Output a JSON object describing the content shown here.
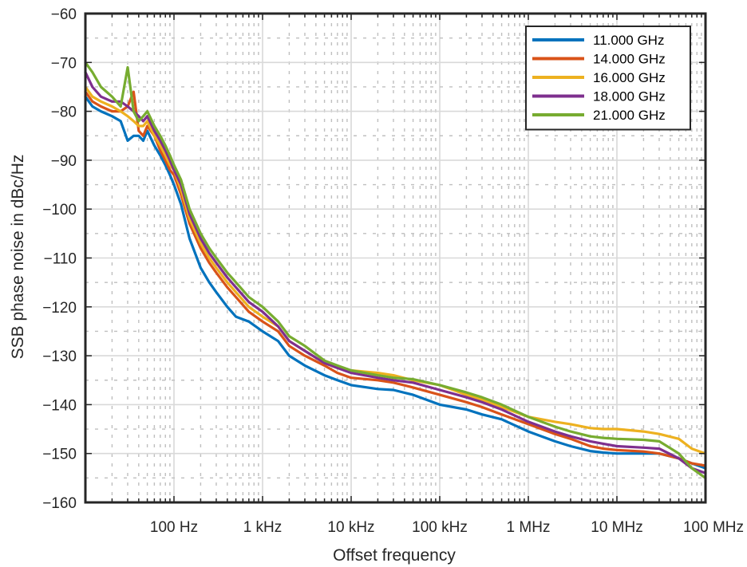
{
  "chart_data": {
    "type": "line",
    "xscale": "log",
    "xlabel": "Offset frequency",
    "ylabel": "SSB phase noise in dBc/Hz",
    "xlim": [
      10,
      100000000
    ],
    "ylim": [
      -160,
      -60
    ],
    "grid": true,
    "legend_position": "top-right",
    "x_ticks": [
      {
        "value": 100,
        "label": "100 Hz"
      },
      {
        "value": 1000,
        "label": "1 kHz"
      },
      {
        "value": 10000,
        "label": "10 kHz"
      },
      {
        "value": 100000,
        "label": "100 kHz"
      },
      {
        "value": 1000000,
        "label": "1 MHz"
      },
      {
        "value": 10000000,
        "label": "10 MHz"
      },
      {
        "value": 100000000,
        "label": "100 MHz"
      }
    ],
    "y_ticks": [
      {
        "value": -60,
        "label": "−60"
      },
      {
        "value": -70,
        "label": "−70"
      },
      {
        "value": -80,
        "label": "−80"
      },
      {
        "value": -90,
        "label": "−90"
      },
      {
        "value": -100,
        "label": "−100"
      },
      {
        "value": -110,
        "label": "−110"
      },
      {
        "value": -120,
        "label": "−120"
      },
      {
        "value": -130,
        "label": "−130"
      },
      {
        "value": -140,
        "label": "−140"
      },
      {
        "value": -150,
        "label": "−150"
      },
      {
        "value": -160,
        "label": "−160"
      }
    ],
    "series": [
      {
        "name": "11.000 GHz",
        "color": "#0072BD",
        "x": [
          10,
          12,
          15,
          20,
          25,
          30,
          35,
          40,
          45,
          50,
          60,
          70,
          80,
          90,
          100,
          120,
          150,
          200,
          250,
          300,
          400,
          500,
          700,
          1000,
          1500,
          2000,
          3000,
          5000,
          7000,
          10000,
          20000,
          30000,
          50000,
          100000,
          200000,
          300000,
          500000,
          1000000,
          2000000,
          3000000,
          5000000,
          7000000,
          10000000,
          20000000,
          30000000,
          50000000,
          70000000,
          100000000
        ],
        "y": [
          -77,
          -79,
          -80,
          -81,
          -82,
          -86,
          -85,
          -85,
          -86,
          -84,
          -87,
          -89,
          -91,
          -93,
          -95,
          -99,
          -106,
          -112,
          -115,
          -117,
          -120,
          -122,
          -123,
          -125,
          -127,
          -130,
          -132,
          -134,
          -135,
          -136,
          -136.8,
          -137,
          -138,
          -140,
          -141,
          -142,
          -143,
          -145.5,
          -147.5,
          -148.5,
          -149.5,
          -149.8,
          -150,
          -150,
          -150,
          -151,
          -152,
          -153
        ]
      },
      {
        "name": "14.000 GHz",
        "color": "#D95319",
        "x": [
          10,
          12,
          15,
          20,
          25,
          30,
          35,
          40,
          45,
          50,
          60,
          70,
          80,
          90,
          100,
          120,
          150,
          200,
          250,
          300,
          400,
          500,
          700,
          1000,
          1500,
          2000,
          3000,
          5000,
          7000,
          10000,
          20000,
          30000,
          50000,
          100000,
          200000,
          300000,
          500000,
          1000000,
          2000000,
          3000000,
          5000000,
          7000000,
          10000000,
          20000000,
          30000000,
          50000000,
          70000000,
          100000000
        ],
        "y": [
          -76,
          -78,
          -79,
          -80,
          -80,
          -79,
          -76,
          -84,
          -85,
          -83,
          -85,
          -88,
          -90,
          -92,
          -93,
          -97,
          -103,
          -108,
          -111,
          -113,
          -116,
          -118,
          -121,
          -123,
          -125,
          -128,
          -130,
          -132,
          -133.5,
          -134.5,
          -135,
          -135.5,
          -136.5,
          -138,
          -139.5,
          -140.5,
          -142,
          -144,
          -146,
          -147,
          -148.5,
          -149,
          -149.3,
          -149.6,
          -150,
          -151,
          -152,
          -152.5
        ]
      },
      {
        "name": "16.000 GHz",
        "color": "#EDB120",
        "x": [
          10,
          12,
          15,
          20,
          25,
          30,
          35,
          40,
          45,
          50,
          60,
          70,
          80,
          90,
          100,
          120,
          150,
          200,
          250,
          300,
          400,
          500,
          700,
          1000,
          1500,
          2000,
          3000,
          5000,
          7000,
          10000,
          20000,
          30000,
          50000,
          100000,
          200000,
          300000,
          500000,
          1000000,
          2000000,
          3000000,
          5000000,
          7000000,
          10000000,
          20000000,
          30000000,
          50000000,
          70000000,
          100000000
        ],
        "y": [
          -75,
          -77,
          -78,
          -79,
          -80,
          -81,
          -82,
          -83,
          -83,
          -82,
          -85,
          -87,
          -89,
          -91,
          -92,
          -96,
          -102,
          -107,
          -110,
          -112,
          -115,
          -117,
          -120,
          -122,
          -124,
          -127,
          -129,
          -131.5,
          -132.5,
          -133,
          -133.5,
          -134,
          -135,
          -136,
          -138,
          -139,
          -140.5,
          -142.5,
          -143.5,
          -144,
          -144.8,
          -145,
          -145,
          -145.5,
          -146,
          -147,
          -149,
          -150
        ]
      },
      {
        "name": "18.000 GHz",
        "color": "#7E2F8E",
        "x": [
          10,
          12,
          15,
          20,
          25,
          30,
          35,
          40,
          45,
          50,
          60,
          70,
          80,
          90,
          100,
          120,
          150,
          200,
          250,
          300,
          400,
          500,
          700,
          1000,
          1500,
          2000,
          3000,
          5000,
          7000,
          10000,
          20000,
          30000,
          50000,
          100000,
          200000,
          300000,
          500000,
          1000000,
          2000000,
          3000000,
          5000000,
          7000000,
          10000000,
          20000000,
          30000000,
          50000000,
          70000000,
          100000000
        ],
        "y": [
          -72,
          -75,
          -77,
          -78,
          -78,
          -79,
          -80,
          -81,
          -82,
          -81,
          -84,
          -86,
          -88,
          -90,
          -92,
          -95,
          -101,
          -106,
          -109,
          -111,
          -114,
          -116,
          -119,
          -121,
          -124,
          -127,
          -129,
          -131.5,
          -132.5,
          -133.5,
          -134.5,
          -135,
          -135.5,
          -137,
          -138.5,
          -139.5,
          -141,
          -143.5,
          -145.5,
          -146.5,
          -147.5,
          -148,
          -148.5,
          -148.8,
          -149,
          -151,
          -153,
          -154
        ]
      },
      {
        "name": "21.000 GHz",
        "color": "#77AC30",
        "x": [
          10,
          12,
          15,
          20,
          25,
          30,
          35,
          40,
          45,
          50,
          60,
          70,
          80,
          90,
          100,
          120,
          150,
          200,
          250,
          300,
          400,
          500,
          700,
          1000,
          1500,
          2000,
          3000,
          5000,
          7000,
          10000,
          20000,
          30000,
          50000,
          100000,
          200000,
          300000,
          500000,
          1000000,
          2000000,
          3000000,
          5000000,
          7000000,
          10000000,
          20000000,
          30000000,
          50000000,
          70000000,
          100000000
        ],
        "y": [
          -70,
          -72,
          -75,
          -77,
          -79,
          -71,
          -80,
          -82,
          -81,
          -80,
          -83,
          -85,
          -87,
          -89,
          -91,
          -94,
          -100,
          -105,
          -108,
          -110,
          -113,
          -115,
          -118,
          -120,
          -123,
          -126,
          -128,
          -131,
          -132,
          -133,
          -134,
          -134.5,
          -134.8,
          -136,
          -137.5,
          -138.5,
          -140,
          -142.5,
          -144.5,
          -145.5,
          -146.5,
          -146.8,
          -147,
          -147.2,
          -147.5,
          -150,
          -153,
          -155
        ]
      }
    ]
  }
}
